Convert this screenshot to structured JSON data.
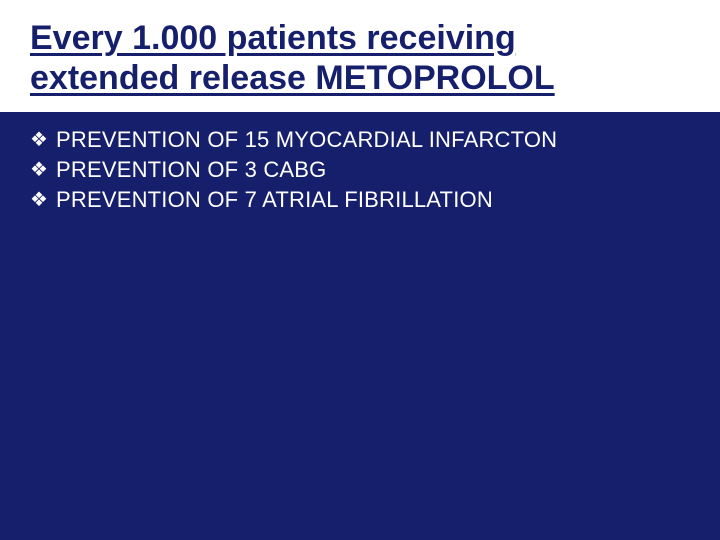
{
  "slide": {
    "background_color": "#161f6b",
    "title_region_background": "#ffffff",
    "title": {
      "line1": "Every 1.000 patients receiving",
      "line2": "extended release METOPROLOL",
      "color": "#161f6b",
      "fontsize": 34
    },
    "bullets": {
      "glyph": "❖",
      "glyph_color": "#ffffff",
      "text_color": "#ffffff",
      "fontsize": 22,
      "items": [
        "PREVENTION OF 15 MYOCARDIAL INFARCTON",
        "PREVENTION OF 3 CABG",
        "PREVENTION OF 7 ATRIAL FIBRILLATION"
      ]
    }
  }
}
